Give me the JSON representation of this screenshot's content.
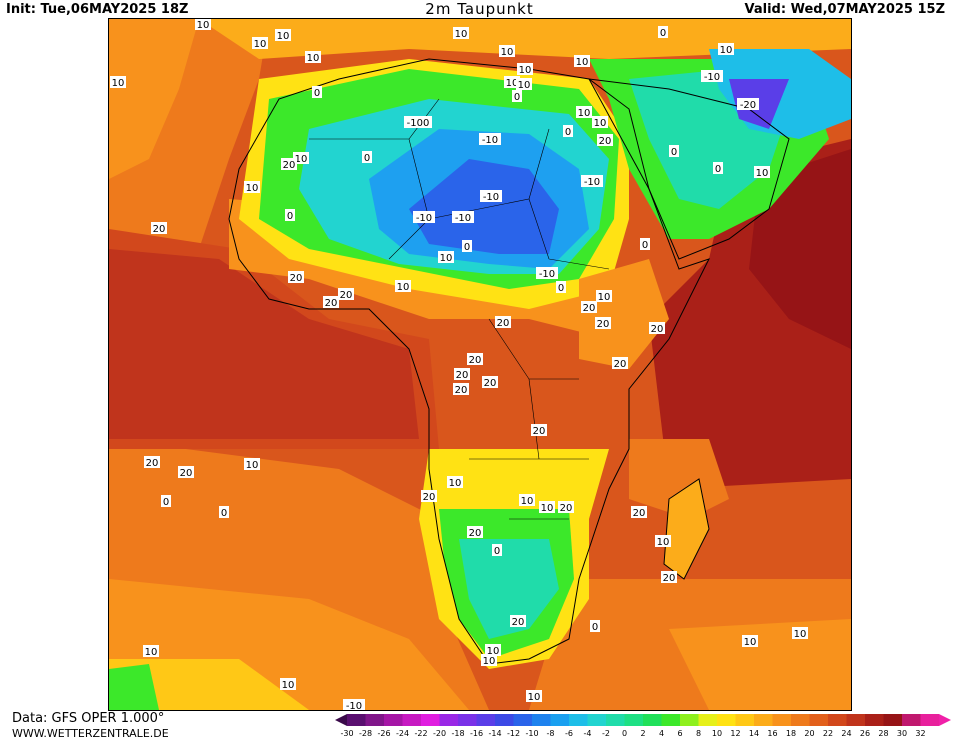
{
  "header": {
    "init": "Init: Tue,06MAY2025 18Z",
    "title": "2m Taupunkt",
    "valid": "Valid: Wed,07MAY2025 15Z"
  },
  "footer": {
    "data_source": "Data: GFS OPER 1.000°",
    "site": "WWW.WETTERZENTRALE.DE"
  },
  "legend": {
    "ticks": [
      "-30",
      "-28",
      "-26",
      "-24",
      "-22",
      "-20",
      "-18",
      "-16",
      "-14",
      "-12",
      "-10",
      "-8",
      "-6",
      "-4",
      "-2",
      "0",
      "2",
      "4",
      "6",
      "8",
      "10",
      "12",
      "14",
      "16",
      "18",
      "20",
      "22",
      "24",
      "26",
      "28",
      "30",
      "32"
    ],
    "colors": [
      "#5a1070",
      "#80168a",
      "#a516a6",
      "#c71ac2",
      "#e01ee0",
      "#9a28e6",
      "#7a32e8",
      "#5a3ee8",
      "#3c4ae6",
      "#2a64ea",
      "#1e82ee",
      "#1aa0f0",
      "#1ebee8",
      "#22d4d0",
      "#20dcaa",
      "#1ee084",
      "#20e05a",
      "#3ce82a",
      "#8ef01e",
      "#e6f01a",
      "#ffe214",
      "#ffc816",
      "#fcac1a",
      "#f8921c",
      "#ee7a1c",
      "#e2601c",
      "#d2481c",
      "#c0341c",
      "#aa2018",
      "#961416",
      "#c0186e",
      "#e8209c"
    ]
  },
  "map_labels": [
    {
      "t": "10"
    },
    {
      "t": "10"
    },
    {
      "t": "10"
    },
    {
      "t": "10"
    },
    {
      "t": "10"
    },
    {
      "t": "10"
    },
    {
      "t": "10"
    },
    {
      "t": "10"
    },
    {
      "t": "0"
    },
    {
      "t": "10"
    },
    {
      "t": "-10"
    },
    {
      "t": "-20"
    },
    {
      "t": "10"
    },
    {
      "t": "0"
    },
    {
      "t": "10"
    },
    {
      "t": "10"
    },
    {
      "t": "0"
    },
    {
      "t": "10"
    },
    {
      "t": "-100"
    },
    {
      "t": "0"
    },
    {
      "t": "10"
    },
    {
      "t": "-10"
    },
    {
      "t": "0"
    },
    {
      "t": "20"
    },
    {
      "t": "10"
    },
    {
      "t": "20"
    },
    {
      "t": "0"
    },
    {
      "t": "10"
    },
    {
      "t": "0"
    },
    {
      "t": "-10"
    },
    {
      "t": "10"
    },
    {
      "t": "0"
    },
    {
      "t": "-10"
    },
    {
      "t": "0"
    },
    {
      "t": "-10"
    },
    {
      "t": "-10"
    },
    {
      "t": "20"
    },
    {
      "t": "0"
    },
    {
      "t": "10"
    },
    {
      "t": "-10"
    },
    {
      "t": "0"
    },
    {
      "t": "20"
    },
    {
      "t": "10"
    },
    {
      "t": "20"
    },
    {
      "t": "20"
    },
    {
      "t": "10"
    },
    {
      "t": "20"
    },
    {
      "t": "20"
    },
    {
      "t": "20"
    },
    {
      "t": "20"
    },
    {
      "t": "20"
    },
    {
      "t": "20"
    },
    {
      "t": "20"
    },
    {
      "t": "20"
    },
    {
      "t": "20"
    },
    {
      "t": "20"
    },
    {
      "t": "20"
    },
    {
      "t": "20"
    },
    {
      "t": "10"
    },
    {
      "t": "20"
    },
    {
      "t": "10"
    },
    {
      "t": "10"
    },
    {
      "t": "10"
    },
    {
      "t": "20"
    },
    {
      "t": "0"
    },
    {
      "t": "0"
    },
    {
      "t": "20"
    },
    {
      "t": "0"
    },
    {
      "t": "20"
    },
    {
      "t": "10"
    },
    {
      "t": "20"
    },
    {
      "t": "20"
    },
    {
      "t": "0"
    },
    {
      "t": "10"
    },
    {
      "t": "10"
    },
    {
      "t": "10"
    },
    {
      "t": "10"
    },
    {
      "t": "10"
    },
    {
      "t": "10"
    },
    {
      "t": "10"
    },
    {
      "t": "-10"
    }
  ]
}
